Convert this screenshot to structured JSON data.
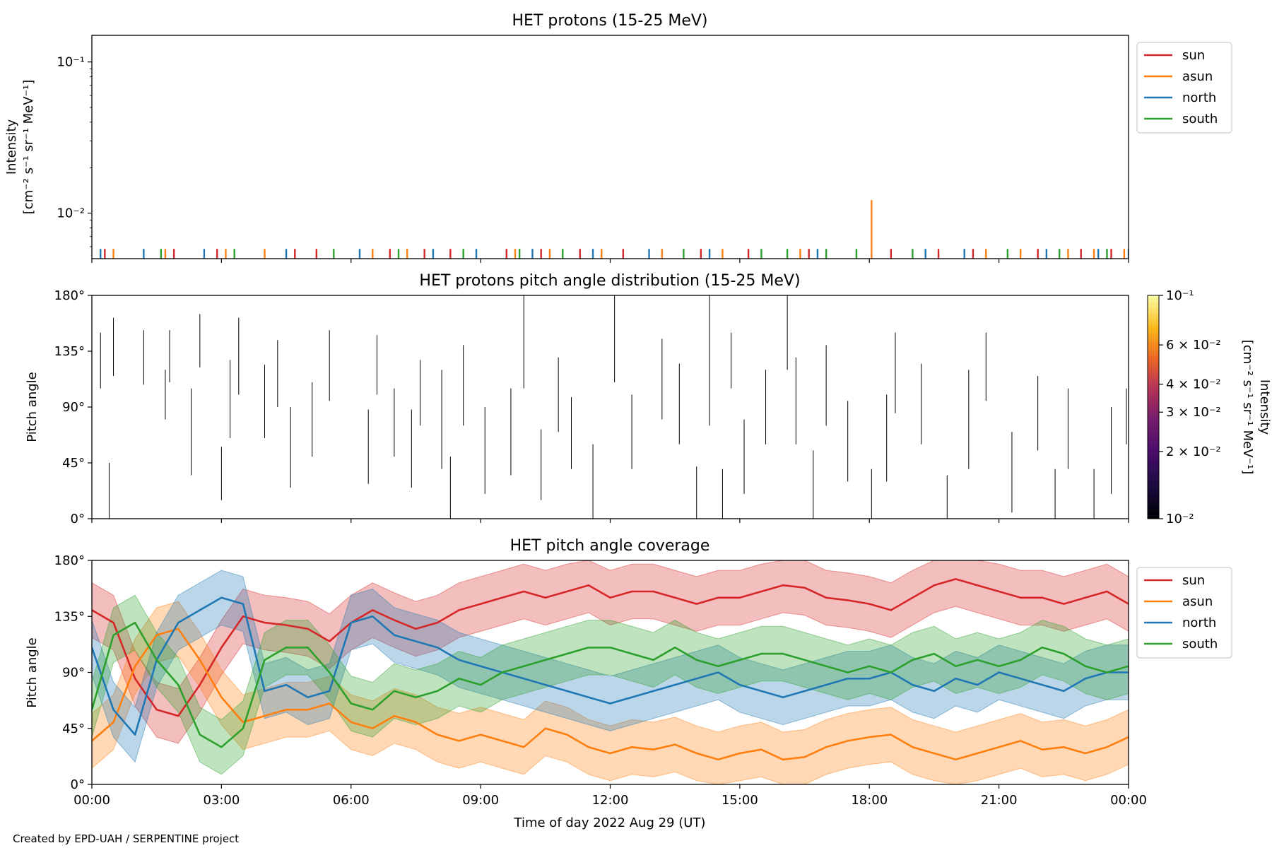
{
  "credit": "Created by EPD-UAH / SERPENTINE project",
  "colors": {
    "sun": "#d62728",
    "asun": "#ff7f0e",
    "north": "#1f77b4",
    "south": "#2ca02c"
  },
  "chart_data": [
    {
      "id": "intensity",
      "type": "line",
      "title": "HET protons (15-25 MeV)",
      "ylabel_line1": "Intensity",
      "ylabel_line2": "[cm⁻² s⁻¹ sr⁻¹ MeV⁻¹]",
      "yscale": "log",
      "ylim": [
        0.005,
        0.15
      ],
      "yticks": [
        {
          "value": 0.1,
          "label": "10⁻¹"
        },
        {
          "value": 0.01,
          "label": "10⁻²"
        }
      ],
      "xlim": [
        0,
        24
      ],
      "legend": "top-right outside",
      "series": [
        {
          "name": "sun",
          "spikes": [
            [
              0.3,
              0.0058
            ],
            [
              1.9,
              0.0058
            ],
            [
              2.9,
              0.0058
            ],
            [
              4.7,
              0.0058
            ],
            [
              5.2,
              0.0058
            ],
            [
              6.9,
              0.0058
            ],
            [
              7.7,
              0.0058
            ],
            [
              8.3,
              0.0058
            ],
            [
              9.6,
              0.0058
            ],
            [
              10.4,
              0.0058
            ],
            [
              11.3,
              0.0058
            ],
            [
              12.3,
              0.0058
            ],
            [
              14.1,
              0.0058
            ],
            [
              15.2,
              0.0058
            ],
            [
              16.6,
              0.0058
            ],
            [
              18.5,
              0.0058
            ],
            [
              19.6,
              0.0058
            ],
            [
              20.4,
              0.0058
            ],
            [
              21.9,
              0.0058
            ],
            [
              22.9,
              0.0058
            ],
            [
              23.6,
              0.0058
            ]
          ]
        },
        {
          "name": "asun",
          "spikes": [
            [
              0.5,
              0.0058
            ],
            [
              1.7,
              0.0058
            ],
            [
              3.1,
              0.0058
            ],
            [
              4.0,
              0.0058
            ],
            [
              6.5,
              0.0058
            ],
            [
              7.3,
              0.0058
            ],
            [
              9.8,
              0.0058
            ],
            [
              10.6,
              0.0058
            ],
            [
              11.8,
              0.0058
            ],
            [
              13.2,
              0.0058
            ],
            [
              14.6,
              0.0058
            ],
            [
              16.4,
              0.0058
            ],
            [
              18.05,
              0.0122
            ],
            [
              20.7,
              0.0058
            ],
            [
              21.5,
              0.0058
            ],
            [
              22.6,
              0.0058
            ],
            [
              23.2,
              0.0058
            ],
            [
              23.9,
              0.0058
            ]
          ]
        },
        {
          "name": "north",
          "spikes": [
            [
              0.2,
              0.0058
            ],
            [
              1.2,
              0.0058
            ],
            [
              2.6,
              0.0058
            ],
            [
              4.5,
              0.0058
            ],
            [
              6.2,
              0.0058
            ],
            [
              7.9,
              0.0058
            ],
            [
              8.9,
              0.0058
            ],
            [
              10.2,
              0.0058
            ],
            [
              11.6,
              0.0058
            ],
            [
              12.9,
              0.0058
            ],
            [
              14.3,
              0.0058
            ],
            [
              16.8,
              0.0058
            ],
            [
              19.3,
              0.0058
            ],
            [
              20.2,
              0.0058
            ],
            [
              22.1,
              0.0058
            ],
            [
              23.3,
              0.0058
            ],
            [
              24.0,
              0.0058
            ]
          ]
        },
        {
          "name": "south",
          "spikes": [
            [
              1.6,
              0.0058
            ],
            [
              3.3,
              0.0058
            ],
            [
              5.6,
              0.0058
            ],
            [
              7.1,
              0.0058
            ],
            [
              8.6,
              0.0058
            ],
            [
              9.9,
              0.0058
            ],
            [
              10.9,
              0.0058
            ],
            [
              13.7,
              0.0058
            ],
            [
              15.5,
              0.0058
            ],
            [
              16.1,
              0.0058
            ],
            [
              17.0,
              0.0058
            ],
            [
              17.7,
              0.0058
            ],
            [
              19.0,
              0.0058
            ],
            [
              21.2,
              0.0058
            ],
            [
              22.4,
              0.0058
            ],
            [
              23.5,
              0.0058
            ]
          ]
        }
      ]
    },
    {
      "id": "pad",
      "type": "heatmap",
      "title": "HET protons pitch angle distribution (15-25 MeV)",
      "ylabel": "Pitch angle",
      "ylim": [
        0,
        180
      ],
      "xlim": [
        0,
        24
      ],
      "yticks": [
        {
          "value": 0,
          "label": "0°"
        },
        {
          "value": 45,
          "label": "45°"
        },
        {
          "value": 90,
          "label": "90°"
        },
        {
          "value": 135,
          "label": "135°"
        },
        {
          "value": 180,
          "label": "180°"
        }
      ],
      "colorbar": {
        "label_line1": "Intensity",
        "label_line2": "[cm⁻² s⁻¹ sr⁻¹ MeV⁻¹]",
        "scale": "log",
        "range": [
          0.01,
          0.1
        ],
        "ticks": [
          {
            "value": 0.1,
            "label": "10⁻¹"
          },
          {
            "value": 0.06,
            "label": "6 × 10⁻²"
          },
          {
            "value": 0.04,
            "label": "4 × 10⁻²"
          },
          {
            "value": 0.03,
            "label": "3 × 10⁻²"
          },
          {
            "value": 0.02,
            "label": "2 × 10⁻²"
          },
          {
            "value": 0.01,
            "label": "10⁻²"
          }
        ]
      },
      "segments": [
        [
          0.2,
          105,
          150
        ],
        [
          0.4,
          0,
          45
        ],
        [
          0.5,
          115,
          162
        ],
        [
          1.2,
          108,
          152
        ],
        [
          1.7,
          80,
          120
        ],
        [
          1.8,
          110,
          152
        ],
        [
          2.3,
          35,
          105
        ],
        [
          2.5,
          122,
          165
        ],
        [
          3.0,
          15,
          58
        ],
        [
          3.2,
          65,
          128
        ],
        [
          3.4,
          100,
          162
        ],
        [
          4.0,
          65,
          124
        ],
        [
          4.3,
          90,
          144
        ],
        [
          4.6,
          25,
          90
        ],
        [
          5.1,
          50,
          110
        ],
        [
          5.5,
          95,
          152
        ],
        [
          6.4,
          28,
          88
        ],
        [
          6.6,
          100,
          148
        ],
        [
          7.0,
          50,
          105
        ],
        [
          7.4,
          25,
          88
        ],
        [
          7.6,
          75,
          128
        ],
        [
          8.1,
          40,
          120
        ],
        [
          8.3,
          0,
          50
        ],
        [
          8.6,
          75,
          140
        ],
        [
          9.1,
          20,
          90
        ],
        [
          9.7,
          35,
          105
        ],
        [
          10.0,
          105,
          180
        ],
        [
          10.4,
          15,
          72
        ],
        [
          10.8,
          70,
          130
        ],
        [
          11.1,
          40,
          98
        ],
        [
          11.6,
          0,
          60
        ],
        [
          12.1,
          110,
          180
        ],
        [
          12.5,
          40,
          100
        ],
        [
          13.2,
          80,
          145
        ],
        [
          13.6,
          60,
          125
        ],
        [
          14.0,
          0,
          42
        ],
        [
          14.3,
          75,
          180
        ],
        [
          14.6,
          0,
          40
        ],
        [
          14.8,
          105,
          150
        ],
        [
          15.1,
          20,
          80
        ],
        [
          15.6,
          60,
          120
        ],
        [
          16.1,
          120,
          180
        ],
        [
          16.3,
          60,
          130
        ],
        [
          16.7,
          0,
          55
        ],
        [
          17.0,
          75,
          140
        ],
        [
          17.5,
          30,
          95
        ],
        [
          18.05,
          0,
          40
        ],
        [
          18.4,
          30,
          100
        ],
        [
          18.6,
          85,
          150
        ],
        [
          19.2,
          60,
          125
        ],
        [
          19.8,
          0,
          35
        ],
        [
          20.3,
          40,
          120
        ],
        [
          20.7,
          95,
          150
        ],
        [
          21.3,
          5,
          70
        ],
        [
          21.9,
          55,
          115
        ],
        [
          22.3,
          0,
          40
        ],
        [
          22.6,
          40,
          105
        ],
        [
          23.2,
          0,
          40
        ],
        [
          23.6,
          20,
          90
        ],
        [
          23.95,
          60,
          105
        ]
      ]
    },
    {
      "id": "coverage",
      "type": "line",
      "title": "HET pitch angle coverage",
      "ylabel": "Pitch angle",
      "ylim": [
        0,
        180
      ],
      "xlim": [
        0,
        24
      ],
      "xlabel": "Time of day 2022 Aug 29 (UT)",
      "xticks": [
        {
          "value": 0,
          "label": "00:00"
        },
        {
          "value": 3,
          "label": "03:00"
        },
        {
          "value": 6,
          "label": "06:00"
        },
        {
          "value": 9,
          "label": "09:00"
        },
        {
          "value": 12,
          "label": "12:00"
        },
        {
          "value": 15,
          "label": "15:00"
        },
        {
          "value": 18,
          "label": "18:00"
        },
        {
          "value": 21,
          "label": "21:00"
        },
        {
          "value": 24,
          "label": "00:00"
        }
      ],
      "yticks": [
        {
          "value": 0,
          "label": "0°"
        },
        {
          "value": 45,
          "label": "45°"
        },
        {
          "value": 90,
          "label": "90°"
        },
        {
          "value": 135,
          "label": "135°"
        },
        {
          "value": 180,
          "label": "180°"
        }
      ],
      "legend": "top-right outside",
      "band_halfwidth_deg": 22,
      "series": [
        {
          "name": "sun",
          "x": [
            0,
            0.5,
            1,
            1.5,
            2,
            2.5,
            3,
            3.5,
            4,
            4.5,
            5,
            5.5,
            6,
            6.5,
            7,
            7.5,
            8,
            8.5,
            9,
            9.5,
            10,
            10.5,
            11,
            11.5,
            12,
            12.5,
            13,
            13.5,
            14,
            14.5,
            15,
            15.5,
            16,
            16.5,
            17,
            17.5,
            18,
            18.5,
            19,
            19.5,
            20,
            20.5,
            21,
            21.5,
            22,
            22.5,
            23,
            23.5,
            24
          ],
          "y": [
            140,
            130,
            85,
            60,
            55,
            80,
            110,
            135,
            130,
            128,
            125,
            115,
            130,
            140,
            132,
            125,
            130,
            140,
            145,
            150,
            155,
            150,
            155,
            160,
            150,
            155,
            155,
            150,
            145,
            150,
            150,
            155,
            160,
            158,
            150,
            148,
            145,
            140,
            150,
            160,
            165,
            160,
            155,
            150,
            150,
            145,
            150,
            155,
            145
          ]
        },
        {
          "name": "asun",
          "x": [
            0,
            0.5,
            1,
            1.5,
            2,
            2.5,
            3,
            3.5,
            4,
            4.5,
            5,
            5.5,
            6,
            6.5,
            7,
            7.5,
            8,
            8.5,
            9,
            9.5,
            10,
            10.5,
            11,
            11.5,
            12,
            12.5,
            13,
            13.5,
            14,
            14.5,
            15,
            15.5,
            16,
            16.5,
            17,
            17.5,
            18,
            18.5,
            19,
            19.5,
            20,
            20.5,
            21,
            21.5,
            22,
            22.5,
            23,
            23.5,
            24
          ],
          "y": [
            35,
            50,
            95,
            120,
            125,
            100,
            70,
            50,
            55,
            60,
            60,
            65,
            50,
            45,
            55,
            50,
            40,
            35,
            40,
            35,
            30,
            45,
            40,
            30,
            25,
            30,
            28,
            32,
            25,
            20,
            25,
            28,
            20,
            22,
            30,
            35,
            38,
            40,
            30,
            25,
            20,
            25,
            30,
            35,
            28,
            30,
            25,
            30,
            38
          ]
        },
        {
          "name": "north",
          "x": [
            0,
            0.5,
            1,
            1.5,
            2,
            2.5,
            3,
            3.5,
            4,
            4.5,
            5,
            5.5,
            6,
            6.5,
            7,
            7.5,
            8,
            8.5,
            9,
            9.5,
            10,
            10.5,
            11,
            11.5,
            12,
            12.5,
            13,
            13.5,
            14,
            14.5,
            15,
            15.5,
            16,
            16.5,
            17,
            17.5,
            18,
            18.5,
            19,
            19.5,
            20,
            20.5,
            21,
            21.5,
            22,
            22.5,
            23,
            23.5,
            24
          ],
          "y": [
            110,
            60,
            40,
            100,
            130,
            140,
            150,
            145,
            75,
            80,
            70,
            75,
            130,
            135,
            120,
            115,
            110,
            100,
            95,
            90,
            85,
            80,
            75,
            70,
            65,
            70,
            75,
            80,
            85,
            90,
            80,
            75,
            70,
            75,
            80,
            85,
            85,
            90,
            80,
            75,
            85,
            80,
            90,
            85,
            80,
            75,
            85,
            90,
            90
          ]
        },
        {
          "name": "south",
          "x": [
            0,
            0.5,
            1,
            1.5,
            2,
            2.5,
            3,
            3.5,
            4,
            4.5,
            5,
            5.5,
            6,
            6.5,
            7,
            7.5,
            8,
            8.5,
            9,
            9.5,
            10,
            10.5,
            11,
            11.5,
            12,
            12.5,
            13,
            13.5,
            14,
            14.5,
            15,
            15.5,
            16,
            16.5,
            17,
            17.5,
            18,
            18.5,
            19,
            19.5,
            20,
            20.5,
            21,
            21.5,
            22,
            22.5,
            23,
            23.5,
            24
          ],
          "y": [
            60,
            120,
            130,
            100,
            80,
            40,
            30,
            45,
            100,
            110,
            110,
            90,
            65,
            60,
            75,
            70,
            75,
            85,
            80,
            90,
            95,
            100,
            105,
            110,
            110,
            105,
            100,
            110,
            100,
            95,
            100,
            105,
            105,
            100,
            95,
            90,
            95,
            90,
            100,
            105,
            95,
            100,
            95,
            100,
            110,
            105,
            95,
            90,
            95
          ]
        }
      ]
    }
  ]
}
